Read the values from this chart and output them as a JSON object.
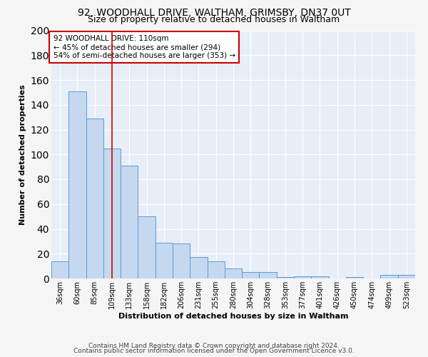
{
  "title_line1": "92, WOODHALL DRIVE, WALTHAM, GRIMSBY, DN37 0UT",
  "title_line2": "Size of property relative to detached houses in Waltham",
  "xlabel": "Distribution of detached houses by size in Waltham",
  "ylabel": "Number of detached properties",
  "categories": [
    "36sqm",
    "60sqm",
    "85sqm",
    "109sqm",
    "133sqm",
    "158sqm",
    "182sqm",
    "206sqm",
    "231sqm",
    "255sqm",
    "280sqm",
    "304sqm",
    "328sqm",
    "353sqm",
    "377sqm",
    "401sqm",
    "426sqm",
    "450sqm",
    "474sqm",
    "499sqm",
    "523sqm"
  ],
  "values": [
    14,
    151,
    129,
    105,
    91,
    50,
    29,
    28,
    17,
    14,
    8,
    5,
    5,
    1,
    2,
    2,
    0,
    1,
    0,
    3,
    3
  ],
  "bar_color": "#c5d8f0",
  "bar_edge_color": "#5b9bd5",
  "vline_x_index": 3,
  "vline_color": "#cc0000",
  "annotation_line1": "92 WOODHALL DRIVE: 110sqm",
  "annotation_line2": "← 45% of detached houses are smaller (294)",
  "annotation_line3": "54% of semi-detached houses are larger (353) →",
  "annotation_box_color": "#ffffff",
  "annotation_box_edge": "#cc0000",
  "ylim": [
    0,
    200
  ],
  "yticks": [
    0,
    20,
    40,
    60,
    80,
    100,
    120,
    140,
    160,
    180,
    200
  ],
  "footer_line1": "Contains HM Land Registry data © Crown copyright and database right 2024.",
  "footer_line2": "Contains public sector information licensed under the Open Government Licence v3.0.",
  "fig_bg_color": "#f5f5f5",
  "plot_bg_color": "#e8eef8",
  "grid_color": "#ffffff",
  "title1_fontsize": 10,
  "title2_fontsize": 9,
  "axis_label_fontsize": 8,
  "tick_fontsize": 7,
  "annotation_fontsize": 7.5,
  "footer_fontsize": 6.5
}
